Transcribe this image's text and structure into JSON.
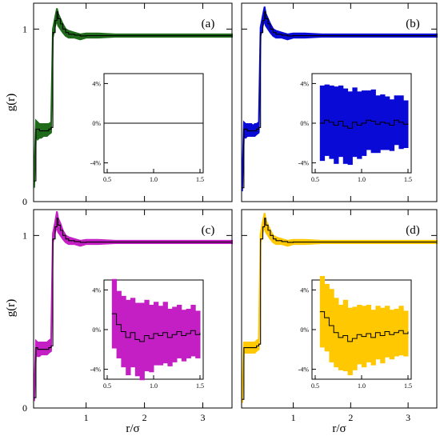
{
  "chart_data": {
    "type": "line",
    "shared": {
      "xlabel": "r/σ",
      "ylabel": "g(r)",
      "main_xlim": [
        0.1,
        3.5
      ],
      "main_ylim": [
        0,
        1.15
      ],
      "main_xticks": [
        "1",
        "2",
        "3"
      ],
      "main_xtick_values": [
        1,
        2,
        3
      ],
      "main_yticks": [
        "0",
        "1"
      ],
      "main_ytick_values": [
        0,
        1
      ],
      "inset_xlim": [
        0.5,
        1.5
      ],
      "inset_ylim": [
        -5,
        5
      ],
      "inset_xticks": [
        "0.5",
        "1.0",
        "1.5"
      ],
      "inset_xtick_values": [
        0.5,
        1.0,
        1.5
      ],
      "inset_yticks": [
        "4%",
        "0%",
        "-4%"
      ],
      "inset_ytick_values": [
        4,
        0,
        -4
      ]
    },
    "panels": [
      {
        "label": "(a)",
        "color": "#1f6b1a",
        "band": {
          "r": [
            0.11,
            0.14,
            0.17,
            0.2,
            0.23,
            0.27,
            0.3,
            0.33,
            0.36,
            0.4,
            0.43,
            0.47,
            0.5,
            0.52,
            0.56,
            0.6,
            0.65,
            0.7,
            0.8,
            0.9,
            1.0,
            1.2,
            1.5,
            2.0,
            2.5,
            3.0,
            3.5
          ],
          "lower": [
            0.08,
            0.38,
            0.36,
            0.37,
            0.37,
            0.38,
            0.38,
            0.38,
            0.39,
            0.4,
            0.95,
            1.02,
            1.05,
            1.02,
            1.0,
            0.98,
            0.96,
            0.95,
            0.95,
            0.94,
            0.95,
            0.95,
            0.955,
            0.955,
            0.955,
            0.955,
            0.955
          ],
          "upper": [
            0.15,
            0.47,
            0.46,
            0.45,
            0.45,
            0.45,
            0.45,
            0.45,
            0.45,
            0.46,
            1.0,
            1.07,
            1.12,
            1.09,
            1.06,
            1.03,
            1.0,
            0.99,
            0.98,
            0.97,
            0.975,
            0.975,
            0.97,
            0.97,
            0.97,
            0.97,
            0.97
          ]
        },
        "curve": {
          "r": [
            0.11,
            0.14,
            0.17,
            0.2,
            0.23,
            0.27,
            0.3,
            0.33,
            0.36,
            0.4,
            0.43,
            0.47,
            0.5,
            0.52,
            0.56,
            0.6,
            0.65,
            0.7,
            0.8,
            0.9,
            1.0,
            1.2,
            1.5,
            2.0,
            2.5,
            3.0,
            3.5
          ],
          "g": [
            0.12,
            0.42,
            0.42,
            0.41,
            0.41,
            0.41,
            0.41,
            0.41,
            0.42,
            0.43,
            0.98,
            1.05,
            1.1,
            1.06,
            1.03,
            1.0,
            0.98,
            0.97,
            0.965,
            0.96,
            0.962,
            0.962,
            0.962,
            0.962,
            0.962,
            0.962,
            0.962
          ]
        },
        "inset": {
          "r": [
            0.55,
            0.6,
            0.65,
            0.7,
            0.75,
            0.8,
            0.85,
            0.9,
            0.95,
            1.0,
            1.05,
            1.1,
            1.15,
            1.2,
            1.25,
            1.3,
            1.35,
            1.4,
            1.45,
            1.5
          ],
          "deviation_percent": [
            0,
            0,
            0,
            0,
            0,
            0,
            0,
            0,
            0,
            0,
            0,
            0,
            0,
            0,
            0,
            0,
            0,
            0,
            0,
            0
          ],
          "band_half_width_percent": [
            0,
            0,
            0,
            0,
            0,
            0,
            0,
            0,
            0,
            0,
            0,
            0,
            0,
            0,
            0,
            0,
            0,
            0,
            0,
            0
          ]
        }
      },
      {
        "label": "(b)",
        "color": "#0a0ad6",
        "band": {
          "r": [
            0.11,
            0.14,
            0.17,
            0.2,
            0.23,
            0.27,
            0.3,
            0.33,
            0.36,
            0.4,
            0.43,
            0.47,
            0.5,
            0.52,
            0.56,
            0.6,
            0.65,
            0.7,
            0.8,
            0.9,
            1.0,
            1.2,
            1.5,
            2.0,
            2.5,
            3.0,
            3.5
          ],
          "lower": [
            0.06,
            0.38,
            0.37,
            0.38,
            0.38,
            0.38,
            0.38,
            0.38,
            0.39,
            0.4,
            0.96,
            1.02,
            1.05,
            1.02,
            1.0,
            0.98,
            0.96,
            0.95,
            0.95,
            0.94,
            0.95,
            0.95,
            0.955,
            0.955,
            0.955,
            0.955,
            0.955
          ],
          "upper": [
            0.12,
            0.46,
            0.45,
            0.45,
            0.45,
            0.45,
            0.44,
            0.45,
            0.45,
            0.46,
            1.01,
            1.08,
            1.13,
            1.09,
            1.06,
            1.03,
            1.0,
            0.99,
            0.98,
            0.97,
            0.975,
            0.975,
            0.97,
            0.97,
            0.97,
            0.97,
            0.97
          ]
        },
        "curve": {
          "r": [
            0.11,
            0.14,
            0.17,
            0.2,
            0.23,
            0.27,
            0.3,
            0.33,
            0.36,
            0.4,
            0.43,
            0.47,
            0.5,
            0.52,
            0.56,
            0.6,
            0.65,
            0.7,
            0.8,
            0.9,
            1.0,
            1.2,
            1.5,
            2.0,
            2.5,
            3.0,
            3.5
          ],
          "g": [
            0.08,
            0.42,
            0.42,
            0.41,
            0.41,
            0.41,
            0.41,
            0.41,
            0.42,
            0.43,
            0.98,
            1.05,
            1.1,
            1.06,
            1.03,
            1.0,
            0.98,
            0.97,
            0.965,
            0.96,
            0.962,
            0.962,
            0.962,
            0.962,
            0.962,
            0.962,
            0.962
          ]
        },
        "inset": {
          "r": [
            0.55,
            0.6,
            0.65,
            0.7,
            0.75,
            0.8,
            0.85,
            0.9,
            0.95,
            1.0,
            1.05,
            1.1,
            1.15,
            1.2,
            1.25,
            1.3,
            1.35,
            1.4,
            1.45,
            1.5
          ],
          "deviation_percent": [
            0.0,
            0.3,
            0.1,
            -0.2,
            0.2,
            -0.3,
            -0.5,
            0.1,
            -0.2,
            0.0,
            0.3,
            0.2,
            -0.1,
            0.1,
            0.0,
            -0.2,
            0.3,
            0.1,
            -0.1,
            0.0
          ],
          "band_half_width_percent": [
            3.8,
            3.6,
            3.7,
            3.9,
            3.6,
            3.8,
            3.7,
            3.5,
            3.4,
            3.3,
            3.0,
            3.2,
            2.9,
            2.8,
            2.7,
            2.6,
            2.5,
            2.7,
            2.4,
            2.3
          ]
        }
      },
      {
        "label": "(c)",
        "color": "#c41fc4",
        "band": {
          "r": [
            0.11,
            0.14,
            0.17,
            0.2,
            0.23,
            0.27,
            0.3,
            0.33,
            0.36,
            0.4,
            0.43,
            0.47,
            0.5,
            0.52,
            0.56,
            0.6,
            0.65,
            0.7,
            0.8,
            0.9,
            1.0,
            1.2,
            1.5,
            2.0,
            2.5,
            3.0,
            3.5
          ],
          "lower": [
            0.04,
            0.31,
            0.3,
            0.3,
            0.31,
            0.31,
            0.31,
            0.31,
            0.32,
            0.33,
            0.96,
            1.02,
            1.05,
            1.02,
            1.0,
            0.98,
            0.96,
            0.95,
            0.95,
            0.94,
            0.95,
            0.95,
            0.955,
            0.955,
            0.955,
            0.955,
            0.955
          ],
          "upper": [
            0.09,
            0.39,
            0.38,
            0.38,
            0.38,
            0.38,
            0.38,
            0.38,
            0.39,
            0.4,
            1.01,
            1.08,
            1.14,
            1.1,
            1.07,
            1.03,
            1.0,
            0.99,
            0.98,
            0.97,
            0.975,
            0.975,
            0.97,
            0.97,
            0.97,
            0.97,
            0.97
          ]
        },
        "curve": {
          "r": [
            0.11,
            0.14,
            0.17,
            0.2,
            0.23,
            0.27,
            0.3,
            0.33,
            0.36,
            0.4,
            0.43,
            0.47,
            0.5,
            0.52,
            0.56,
            0.6,
            0.65,
            0.7,
            0.8,
            0.9,
            1.0,
            1.2,
            1.5,
            2.0,
            2.5,
            3.0,
            3.5
          ],
          "g": [
            0.06,
            0.35,
            0.34,
            0.34,
            0.34,
            0.34,
            0.34,
            0.34,
            0.35,
            0.36,
            0.98,
            1.05,
            1.1,
            1.06,
            1.03,
            1.0,
            0.98,
            0.97,
            0.965,
            0.96,
            0.962,
            0.962,
            0.962,
            0.962,
            0.962,
            0.962,
            0.962
          ]
        },
        "inset": {
          "r": [
            0.55,
            0.6,
            0.65,
            0.7,
            0.75,
            0.8,
            0.85,
            0.9,
            0.95,
            1.0,
            1.05,
            1.1,
            1.15,
            1.2,
            1.25,
            1.3,
            1.35,
            1.4,
            1.45,
            1.5
          ],
          "deviation_percent": [
            1.6,
            0.5,
            -0.2,
            -0.8,
            -0.3,
            -1.0,
            -1.2,
            -0.6,
            -0.9,
            -0.4,
            -0.6,
            -0.3,
            -0.8,
            -0.5,
            -0.2,
            -0.6,
            -0.4,
            -0.1,
            -0.5,
            -0.3
          ],
          "band_half_width_percent": [
            3.5,
            3.4,
            3.6,
            3.8,
            3.5,
            3.7,
            3.9,
            3.6,
            3.4,
            3.2,
            3.0,
            3.1,
            2.9,
            2.8,
            2.7,
            2.6,
            2.5,
            2.6,
            2.4,
            2.3
          ]
        }
      },
      {
        "label": "(d)",
        "color": "#ffc800",
        "band": {
          "r": [
            0.11,
            0.14,
            0.17,
            0.2,
            0.23,
            0.27,
            0.3,
            0.33,
            0.36,
            0.4,
            0.43,
            0.47,
            0.5,
            0.52,
            0.56,
            0.6,
            0.65,
            0.7,
            0.8,
            0.9,
            1.0,
            1.2,
            1.5,
            2.0,
            2.5,
            3.0,
            3.5
          ],
          "lower": [
            0.03,
            0.32,
            0.32,
            0.32,
            0.32,
            0.32,
            0.32,
            0.32,
            0.33,
            0.34,
            0.96,
            1.02,
            1.05,
            1.02,
            1.0,
            0.98,
            0.96,
            0.95,
            0.95,
            0.94,
            0.95,
            0.95,
            0.955,
            0.955,
            0.955,
            0.955,
            0.955
          ],
          "upper": [
            0.07,
            0.38,
            0.38,
            0.38,
            0.38,
            0.38,
            0.38,
            0.38,
            0.39,
            0.4,
            1.01,
            1.08,
            1.13,
            1.09,
            1.06,
            1.03,
            1.0,
            0.99,
            0.98,
            0.97,
            0.975,
            0.975,
            0.97,
            0.97,
            0.97,
            0.97,
            0.97
          ]
        },
        "curve": {
          "r": [
            0.11,
            0.14,
            0.17,
            0.2,
            0.23,
            0.27,
            0.3,
            0.33,
            0.36,
            0.4,
            0.43,
            0.47,
            0.5,
            0.52,
            0.56,
            0.6,
            0.65,
            0.7,
            0.8,
            0.9,
            1.0,
            1.2,
            1.5,
            2.0,
            2.5,
            3.0,
            3.5
          ],
          "g": [
            0.05,
            0.35,
            0.35,
            0.35,
            0.35,
            0.35,
            0.35,
            0.35,
            0.36,
            0.37,
            0.98,
            1.05,
            1.1,
            1.06,
            1.03,
            1.0,
            0.98,
            0.97,
            0.965,
            0.96,
            0.962,
            0.962,
            0.962,
            0.962,
            0.962,
            0.962,
            0.962
          ]
        },
        "inset": {
          "r": [
            0.55,
            0.6,
            0.65,
            0.7,
            0.75,
            0.8,
            0.85,
            0.9,
            0.95,
            1.0,
            1.05,
            1.1,
            1.15,
            1.2,
            1.25,
            1.3,
            1.35,
            1.4,
            1.45,
            1.5
          ],
          "deviation_percent": [
            1.8,
            1.2,
            0.4,
            -0.3,
            -0.8,
            -0.6,
            -1.2,
            -0.9,
            -0.5,
            -0.7,
            -0.4,
            -0.8,
            -0.3,
            -0.6,
            -0.2,
            -0.5,
            -0.3,
            -0.1,
            -0.4,
            -0.2
          ],
          "band_half_width_percent": [
            3.6,
            3.4,
            3.7,
            3.5,
            3.3,
            3.6,
            3.4,
            3.2,
            3.0,
            3.1,
            2.9,
            2.8,
            2.7,
            2.8,
            2.6,
            2.5,
            2.4,
            2.5,
            2.3,
            2.2
          ]
        }
      }
    ]
  }
}
